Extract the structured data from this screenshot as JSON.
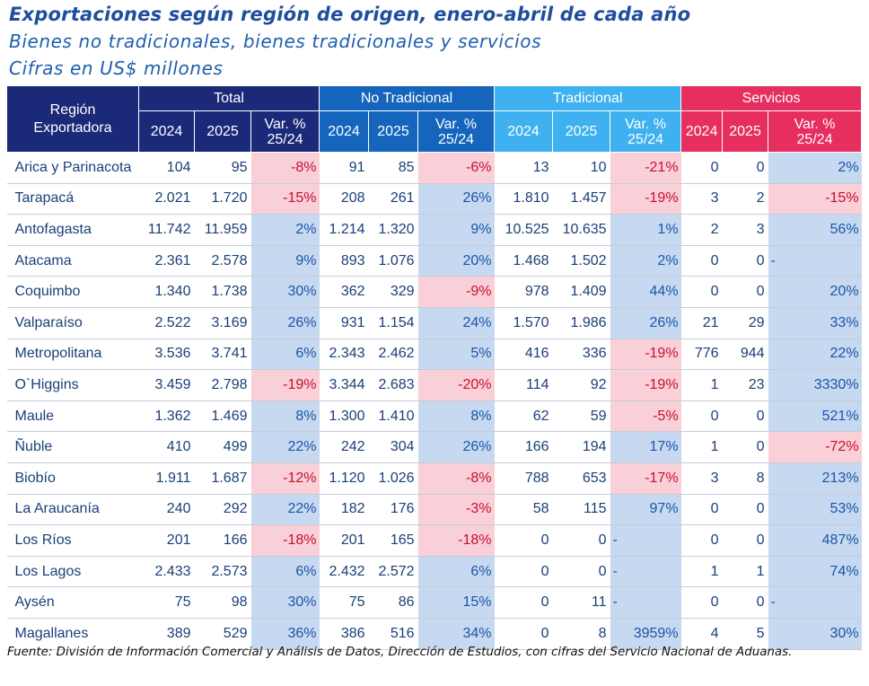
{
  "title": "Exportaciones según región de origen, enero-abril de cada año",
  "subtitle": "Bienes no tradicionales, bienes tradicionales y servicios",
  "units": "Cifras en US$ millones",
  "source": "Fuente: División de Información Comercial y Análisis de Datos, Dirección de Estudios, con cifras del Servicio Nacional de Aduanas.",
  "colors": {
    "navy": "#1b2a78",
    "blue": "#1565bd",
    "sky": "#3fb1f0",
    "rose": "#e62e5f",
    "pos_fill": "#c6d9f0",
    "neg_fill": "#f9cfd8"
  },
  "chart_data": {
    "type": "table",
    "row_header": "Región Exportadora",
    "groups": [
      "Total",
      "No Tradicional",
      "Tradicional",
      "Servicios"
    ],
    "subcolumns": [
      "2024",
      "2025",
      "Var. % 25/24"
    ],
    "rows": [
      {
        "region": "Arica y Parinacota",
        "values": [
          "104",
          "95",
          "-8%",
          "91",
          "85",
          "-6%",
          "13",
          "10",
          "-21%",
          "0",
          "0",
          "2%"
        ]
      },
      {
        "region": "Tarapacá",
        "values": [
          "2.021",
          "1.720",
          "-15%",
          "208",
          "261",
          "26%",
          "1.810",
          "1.457",
          "-19%",
          "3",
          "2",
          "-15%"
        ]
      },
      {
        "region": "Antofagasta",
        "values": [
          "11.742",
          "11.959",
          "2%",
          "1.214",
          "1.320",
          "9%",
          "10.525",
          "10.635",
          "1%",
          "2",
          "3",
          "56%"
        ]
      },
      {
        "region": "Atacama",
        "values": [
          "2.361",
          "2.578",
          "9%",
          "893",
          "1.076",
          "20%",
          "1.468",
          "1.502",
          "2%",
          "0",
          "0",
          "-"
        ]
      },
      {
        "region": "Coquimbo",
        "values": [
          "1.340",
          "1.738",
          "30%",
          "362",
          "329",
          "-9%",
          "978",
          "1.409",
          "44%",
          "0",
          "0",
          "20%"
        ]
      },
      {
        "region": "Valparaíso",
        "values": [
          "2.522",
          "3.169",
          "26%",
          "931",
          "1.154",
          "24%",
          "1.570",
          "1.986",
          "26%",
          "21",
          "29",
          "33%"
        ]
      },
      {
        "region": "Metropolitana",
        "values": [
          "3.536",
          "3.741",
          "6%",
          "2.343",
          "2.462",
          "5%",
          "416",
          "336",
          "-19%",
          "776",
          "944",
          "22%"
        ]
      },
      {
        "region": "O`Higgins",
        "values": [
          "3.459",
          "2.798",
          "-19%",
          "3.344",
          "2.683",
          "-20%",
          "114",
          "92",
          "-19%",
          "1",
          "23",
          "3330%"
        ]
      },
      {
        "region": "Maule",
        "values": [
          "1.362",
          "1.469",
          "8%",
          "1.300",
          "1.410",
          "8%",
          "62",
          "59",
          "-5%",
          "0",
          "0",
          "521%"
        ]
      },
      {
        "region": "Ñuble",
        "values": [
          "410",
          "499",
          "22%",
          "242",
          "304",
          "26%",
          "166",
          "194",
          "17%",
          "1",
          "0",
          "-72%"
        ]
      },
      {
        "region": "Biobío",
        "values": [
          "1.911",
          "1.687",
          "-12%",
          "1.120",
          "1.026",
          "-8%",
          "788",
          "653",
          "-17%",
          "3",
          "8",
          "213%"
        ]
      },
      {
        "region": "La Araucanía",
        "values": [
          "240",
          "292",
          "22%",
          "182",
          "176",
          "-3%",
          "58",
          "115",
          "97%",
          "0",
          "0",
          "53%"
        ]
      },
      {
        "region": "Los Ríos",
        "values": [
          "201",
          "166",
          "-18%",
          "201",
          "165",
          "-18%",
          "0",
          "0",
          "-",
          "0",
          "0",
          "487%"
        ]
      },
      {
        "region": "Los Lagos",
        "values": [
          "2.433",
          "2.573",
          "6%",
          "2.432",
          "2.572",
          "6%",
          "0",
          "0",
          "-",
          "1",
          "1",
          "74%"
        ]
      },
      {
        "region": "Aysén",
        "values": [
          "75",
          "98",
          "30%",
          "75",
          "86",
          "15%",
          "0",
          "11",
          "-",
          "0",
          "0",
          "-"
        ]
      },
      {
        "region": "Magallanes",
        "values": [
          "389",
          "529",
          "36%",
          "386",
          "516",
          "34%",
          "0",
          "8",
          "3959%",
          "4",
          "5",
          "30%"
        ]
      }
    ]
  }
}
